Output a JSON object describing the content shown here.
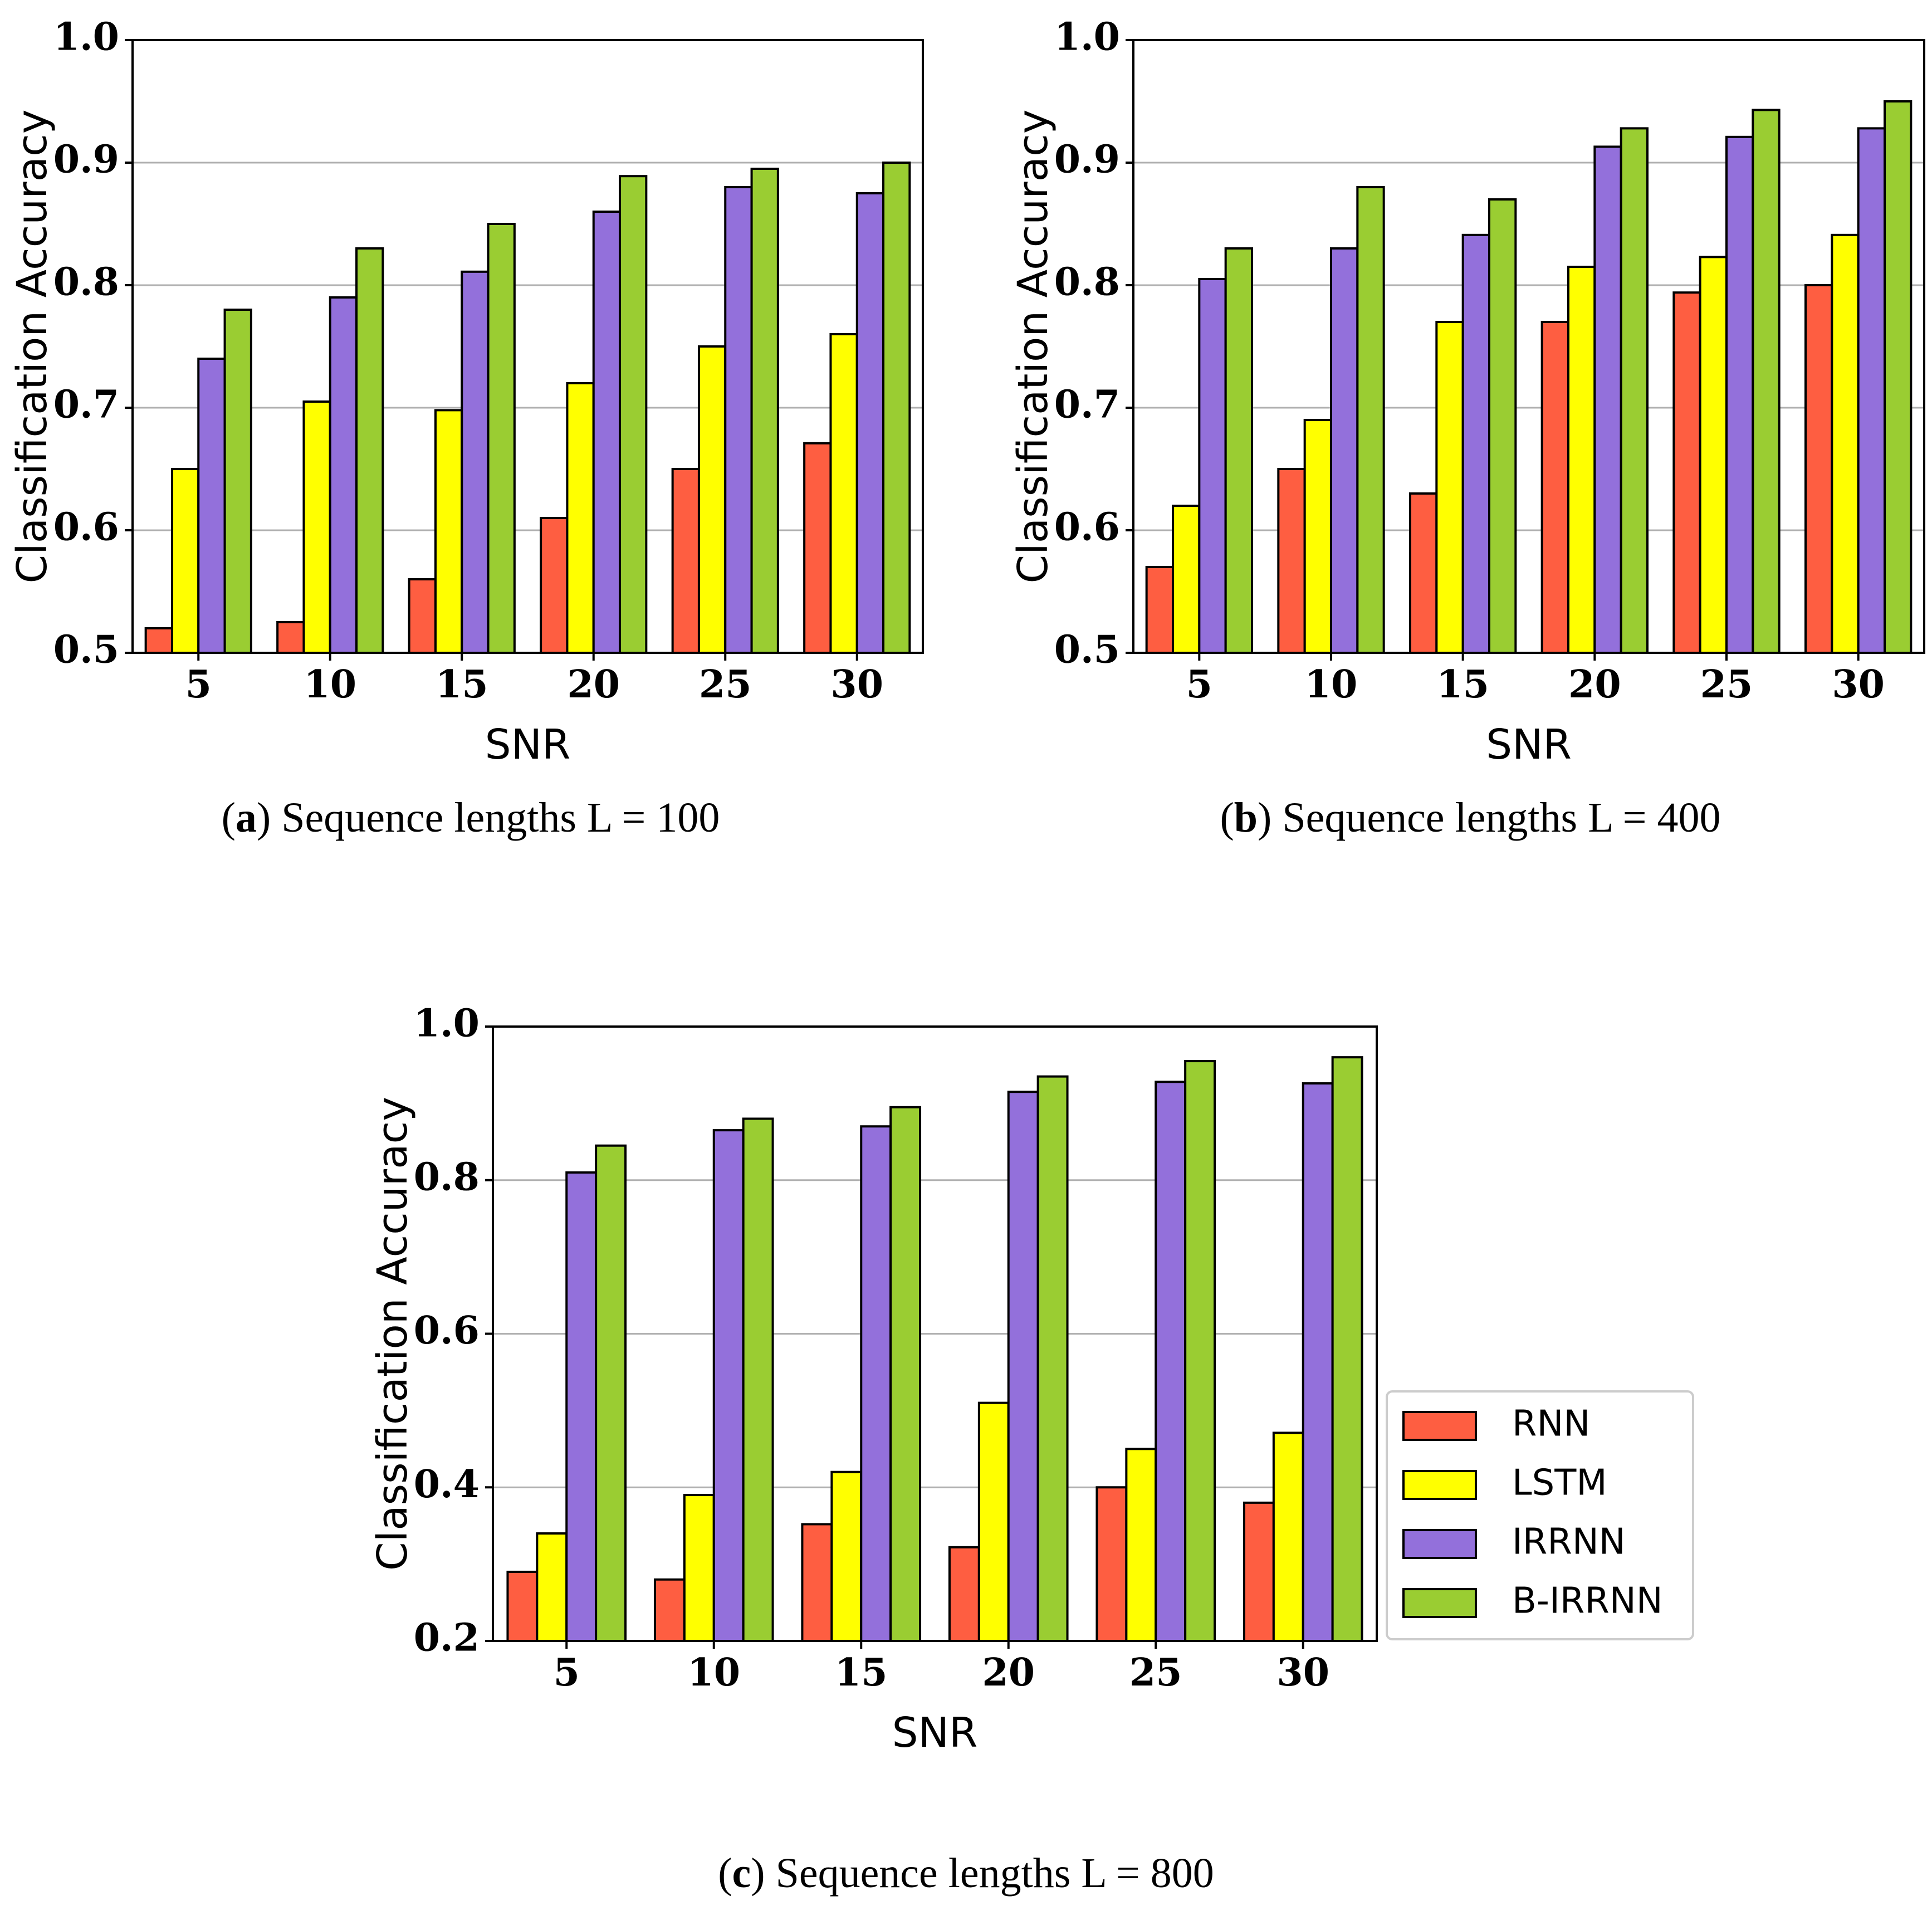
{
  "chart_data": [
    {
      "type": "bar",
      "panel_label": "a",
      "caption": "Sequence lengths L = 100",
      "xlabel": "SNR",
      "ylabel": "Classification Accuracy",
      "categories": [
        "5",
        "10",
        "15",
        "20",
        "25",
        "30"
      ],
      "ylim": [
        0.5,
        1.0
      ],
      "yticks": [
        "0.5",
        "0.6",
        "0.7",
        "0.8",
        "0.9",
        "1.0"
      ],
      "grid": true,
      "series": [
        {
          "name": "RNN",
          "values": [
            0.52,
            0.525,
            0.56,
            0.61,
            0.65,
            0.671
          ]
        },
        {
          "name": "LSTM",
          "values": [
            0.65,
            0.705,
            0.698,
            0.72,
            0.75,
            0.76
          ]
        },
        {
          "name": "IRRNN",
          "values": [
            0.74,
            0.79,
            0.811,
            0.86,
            0.88,
            0.875
          ]
        },
        {
          "name": "B-IRRNN",
          "values": [
            0.78,
            0.83,
            0.85,
            0.889,
            0.895,
            0.9
          ]
        }
      ]
    },
    {
      "type": "bar",
      "panel_label": "b",
      "caption": "Sequence lengths L = 400",
      "xlabel": "SNR",
      "ylabel": "Classification Accuracy",
      "categories": [
        "5",
        "10",
        "15",
        "20",
        "25",
        "30"
      ],
      "ylim": [
        0.5,
        1.0
      ],
      "yticks": [
        "0.5",
        "0.6",
        "0.7",
        "0.8",
        "0.9",
        "1.0"
      ],
      "grid": true,
      "series": [
        {
          "name": "RNN",
          "values": [
            0.57,
            0.65,
            0.63,
            0.77,
            0.794,
            0.8
          ]
        },
        {
          "name": "LSTM",
          "values": [
            0.62,
            0.69,
            0.77,
            0.815,
            0.823,
            0.841
          ]
        },
        {
          "name": "IRRNN",
          "values": [
            0.805,
            0.83,
            0.841,
            0.913,
            0.921,
            0.928
          ]
        },
        {
          "name": "B-IRRNN",
          "values": [
            0.83,
            0.88,
            0.87,
            0.928,
            0.943,
            0.95
          ]
        }
      ]
    },
    {
      "type": "bar",
      "panel_label": "c",
      "caption": "Sequence lengths L = 800",
      "xlabel": "SNR",
      "ylabel": "Classification Accuracy",
      "categories": [
        "5",
        "10",
        "15",
        "20",
        "25",
        "30"
      ],
      "ylim": [
        0.2,
        1.0
      ],
      "yticks": [
        "0.2",
        "0.4",
        "0.6",
        "0.8",
        "1.0"
      ],
      "grid": true,
      "legend_position": "right",
      "series": [
        {
          "name": "RNN",
          "values": [
            0.29,
            0.28,
            0.352,
            0.322,
            0.4,
            0.38
          ]
        },
        {
          "name": "LSTM",
          "values": [
            0.34,
            0.39,
            0.42,
            0.51,
            0.45,
            0.471
          ]
        },
        {
          "name": "IRRNN",
          "values": [
            0.81,
            0.865,
            0.87,
            0.915,
            0.928,
            0.926
          ]
        },
        {
          "name": "B-IRRNN",
          "values": [
            0.845,
            0.88,
            0.895,
            0.935,
            0.955,
            0.96
          ]
        }
      ]
    }
  ],
  "legend": {
    "entries": [
      {
        "label": "RNN",
        "color": "#fe5e41"
      },
      {
        "label": "LSTM",
        "color": "#ffff00"
      },
      {
        "label": "IRRNN",
        "color": "#9370db"
      },
      {
        "label": "B-IRRNN",
        "color": "#9acd32"
      }
    ]
  },
  "colors": [
    "#fe5e41",
    "#ffff00",
    "#9370db",
    "#9acd32"
  ]
}
